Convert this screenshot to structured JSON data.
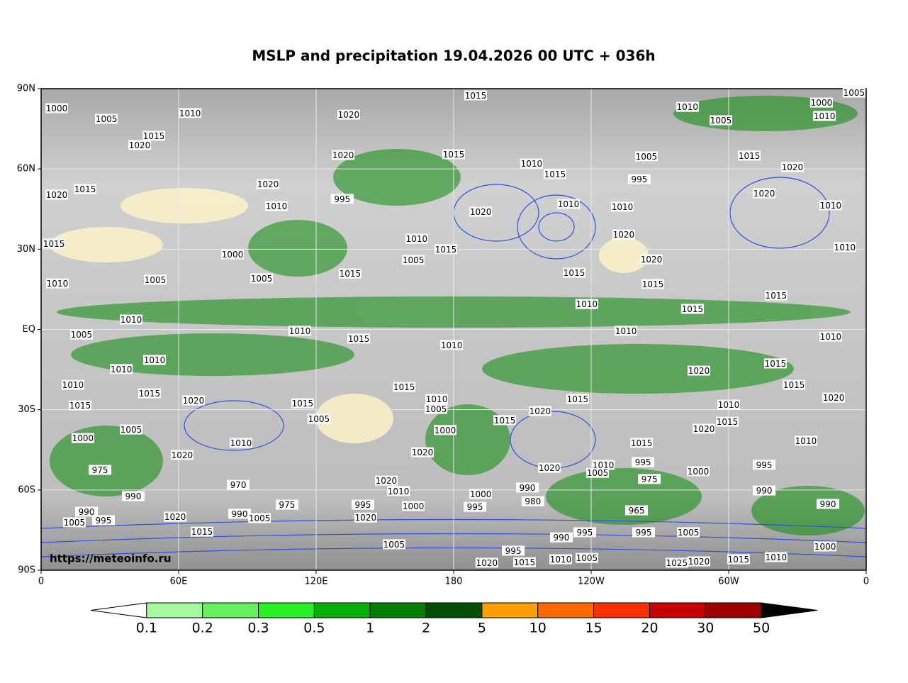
{
  "title": "MSLP and precipitation 19.04.2026 00 UTC + 036h",
  "watermark": "https://meteoinfo.ru",
  "map": {
    "xlim": [
      0,
      360
    ],
    "ylim": [
      -90,
      90
    ],
    "xticks": [
      0,
      {
        "value": 60,
        "label": "60E"
      },
      {
        "value": 120,
        "label": "120E"
      },
      180,
      {
        "value": 240,
        "label": "120W"
      },
      {
        "value": 300,
        "label": "60W"
      },
      {
        "value": 360,
        "label": "0"
      }
    ],
    "yticks": [
      {
        "value": 90,
        "label": "90N"
      },
      {
        "value": 60,
        "label": "60N"
      },
      {
        "value": 30,
        "label": "30N"
      },
      {
        "value": 0,
        "label": "EQ"
      },
      {
        "value": -30,
        "label": "30S"
      },
      {
        "value": -60,
        "label": "60S"
      },
      {
        "value": -90,
        "label": "90S"
      }
    ],
    "grid": true
  },
  "colorbar": {
    "levels": [
      0.1,
      0.2,
      0.3,
      0.5,
      1,
      2,
      5,
      10,
      15,
      20,
      30,
      50
    ],
    "colors": [
      "#ffffff",
      "#a5f8a0",
      "#66f060",
      "#27f027",
      "#07b007",
      "#058005",
      "#034f03",
      "#ff9e00",
      "#ff6a00",
      "#ff3000",
      "#c80000",
      "#a00000",
      "#000000"
    ]
  },
  "isobar_labels": [
    {
      "p": 1015,
      "lon": 189.6,
      "lat": 87.5
    },
    {
      "p": 1000,
      "lon": 6.8,
      "lat": 82.7
    },
    {
      "p": 1005,
      "lon": 28.5,
      "lat": 78.7
    },
    {
      "p": 1010,
      "lon": 65,
      "lat": 80.9
    },
    {
      "p": 1020,
      "lon": 134.2,
      "lat": 80.3
    },
    {
      "p": 1015,
      "lon": 49.2,
      "lat": 72.4
    },
    {
      "p": 1020,
      "lon": 43,
      "lat": 68.9
    },
    {
      "p": 1020,
      "lon": 131.8,
      "lat": 65.2
    },
    {
      "p": 1020,
      "lon": 6.8,
      "lat": 50.4
    },
    {
      "p": 1015,
      "lon": 19.2,
      "lat": 52.5
    },
    {
      "p": 1020,
      "lon": 99,
      "lat": 54.3
    },
    {
      "p": 1010,
      "lon": 102.7,
      "lat": 46.1
    },
    {
      "p": 995,
      "lon": 131.4,
      "lat": 48.8
    },
    {
      "p": 1015,
      "lon": 180,
      "lat": 65.5
    },
    {
      "p": 1010,
      "lon": 214,
      "lat": 62
    },
    {
      "p": 1015,
      "lon": 224.2,
      "lat": 58
    },
    {
      "p": 1020,
      "lon": 191.8,
      "lat": 44
    },
    {
      "p": 1010,
      "lon": 230.1,
      "lat": 46.9
    },
    {
      "p": 1010,
      "lon": 253.6,
      "lat": 45.9
    },
    {
      "p": 1020,
      "lon": 254.2,
      "lat": 35.5
    },
    {
      "p": 1005,
      "lon": 264.1,
      "lat": 64.7
    },
    {
      "p": 995,
      "lon": 261,
      "lat": 56.2
    },
    {
      "p": 1010,
      "lon": 282,
      "lat": 83.2
    },
    {
      "p": 1005,
      "lon": 296.6,
      "lat": 78.2
    },
    {
      "p": 1010,
      "lon": 341.8,
      "lat": 79.8
    },
    {
      "p": 1000,
      "lon": 340.5,
      "lat": 84.8
    },
    {
      "p": 1005,
      "lon": 354.7,
      "lat": 88.5
    },
    {
      "p": 1015,
      "lon": 309,
      "lat": 65
    },
    {
      "p": 1020,
      "lon": 327.8,
      "lat": 60.7
    },
    {
      "p": 1020,
      "lon": 315.5,
      "lat": 50.9
    },
    {
      "p": 1010,
      "lon": 344.5,
      "lat": 46.4
    },
    {
      "p": 1010,
      "lon": 350.7,
      "lat": 30.8
    },
    {
      "p": 1015,
      "lon": 5.6,
      "lat": 32.1
    },
    {
      "p": 1010,
      "lon": 7.1,
      "lat": 17.2
    },
    {
      "p": 1005,
      "lon": 49.8,
      "lat": 18.6
    },
    {
      "p": 1000,
      "lon": 83.5,
      "lat": 28.1
    },
    {
      "p": 1005,
      "lon": 96.2,
      "lat": 19.1
    },
    {
      "p": 1010,
      "lon": 163.9,
      "lat": 33.9
    },
    {
      "p": 1005,
      "lon": 162.4,
      "lat": 26
    },
    {
      "p": 1015,
      "lon": 176.6,
      "lat": 30
    },
    {
      "p": 1015,
      "lon": 134.8,
      "lat": 20.9
    },
    {
      "p": 1015,
      "lon": 232.6,
      "lat": 21.2
    },
    {
      "p": 1020,
      "lon": 266.3,
      "lat": 26.2
    },
    {
      "p": 1015,
      "lon": 266.9,
      "lat": 17
    },
    {
      "p": 1015,
      "lon": 284.2,
      "lat": 7.7
    },
    {
      "p": 1015,
      "lon": 320.7,
      "lat": 12.7
    },
    {
      "p": 1010,
      "lon": 238.1,
      "lat": 9.5
    },
    {
      "p": 1010,
      "lon": 255.2,
      "lat": -0.5
    },
    {
      "p": 1010,
      "lon": 179.1,
      "lat": -5.8
    },
    {
      "p": 1005,
      "lon": 17.6,
      "lat": -1.9
    },
    {
      "p": 1010,
      "lon": 39.3,
      "lat": 3.7
    },
    {
      "p": 1010,
      "lon": 112.9,
      "lat": -0.5
    },
    {
      "p": 1015,
      "lon": 138.6,
      "lat": -3.4
    },
    {
      "p": 1010,
      "lon": 344.5,
      "lat": -2.7
    },
    {
      "p": 1020,
      "lon": 287,
      "lat": -15.4
    },
    {
      "p": 1015,
      "lon": 320.4,
      "lat": -12.7
    },
    {
      "p": 1015,
      "lon": 328.5,
      "lat": -20.7
    },
    {
      "p": 1020,
      "lon": 345.8,
      "lat": -25.5
    },
    {
      "p": 1010,
      "lon": 300,
      "lat": -28.1
    },
    {
      "p": 1015,
      "lon": 299.4,
      "lat": -34.5
    },
    {
      "p": 1020,
      "lon": 289.2,
      "lat": -37.1
    },
    {
      "p": 1010,
      "lon": 13.9,
      "lat": -20.7
    },
    {
      "p": 1015,
      "lon": 17,
      "lat": -28.4
    },
    {
      "p": 1010,
      "lon": 49.5,
      "lat": -11.4
    },
    {
      "p": 1015,
      "lon": 47.3,
      "lat": -23.9
    },
    {
      "p": 1020,
      "lon": 66.5,
      "lat": -26.5
    },
    {
      "p": 1010,
      "lon": 35,
      "lat": -14.8
    },
    {
      "p": 1005,
      "lon": 39.3,
      "lat": -37.4
    },
    {
      "p": 1000,
      "lon": 18.2,
      "lat": -40.6
    },
    {
      "p": 975,
      "lon": 25.7,
      "lat": -52.5
    },
    {
      "p": 1020,
      "lon": 61.5,
      "lat": -46.9
    },
    {
      "p": 1010,
      "lon": 87.2,
      "lat": -42.4
    },
    {
      "p": 970,
      "lon": 86,
      "lat": -58.1
    },
    {
      "p": 1015,
      "lon": 114.1,
      "lat": -27.6
    },
    {
      "p": 1005,
      "lon": 121.2,
      "lat": -33.4
    },
    {
      "p": 1015,
      "lon": 158.4,
      "lat": -21.5
    },
    {
      "p": 1010,
      "lon": 172.6,
      "lat": -26
    },
    {
      "p": 1005,
      "lon": 172.3,
      "lat": -29.7
    },
    {
      "p": 1000,
      "lon": 176.3,
      "lat": -37.6
    },
    {
      "p": 1020,
      "lon": 166.4,
      "lat": -45.9
    },
    {
      "p": 1020,
      "lon": 150.6,
      "lat": -56.5
    },
    {
      "p": 1010,
      "lon": 155.9,
      "lat": -60.4
    },
    {
      "p": 1015,
      "lon": 202.3,
      "lat": -33.9
    },
    {
      "p": 1020,
      "lon": 217.7,
      "lat": -30.5
    },
    {
      "p": 1015,
      "lon": 234.1,
      "lat": -26
    },
    {
      "p": 1020,
      "lon": 221.8,
      "lat": -51.7
    },
    {
      "p": 1010,
      "lon": 245.3,
      "lat": -50.6
    },
    {
      "p": 1005,
      "lon": 242.8,
      "lat": -53.6
    },
    {
      "p": 1015,
      "lon": 262,
      "lat": -42.4
    },
    {
      "p": 995,
      "lon": 262.6,
      "lat": -49.6
    },
    {
      "p": 975,
      "lon": 265.4,
      "lat": -55.9
    },
    {
      "p": 965,
      "lon": 259.8,
      "lat": -67.6
    },
    {
      "p": 1000,
      "lon": 191.8,
      "lat": -61.5
    },
    {
      "p": 995,
      "lon": 189.3,
      "lat": -66.3
    },
    {
      "p": 990,
      "lon": 212.2,
      "lat": -59.1
    },
    {
      "p": 980,
      "lon": 214.6,
      "lat": -64.2
    },
    {
      "p": 1000,
      "lon": 286.7,
      "lat": -53
    },
    {
      "p": 995,
      "lon": 315.5,
      "lat": -50.6
    },
    {
      "p": 990,
      "lon": 315.5,
      "lat": -60.2
    },
    {
      "p": 1010,
      "lon": 333.7,
      "lat": -41.6
    },
    {
      "p": 990,
      "lon": 343.3,
      "lat": -65.2
    },
    {
      "p": 990,
      "lon": 40.2,
      "lat": -62.3
    },
    {
      "p": 990,
      "lon": 19.8,
      "lat": -68.1
    },
    {
      "p": 1005,
      "lon": 14.5,
      "lat": -72.1
    },
    {
      "p": 995,
      "lon": 27.2,
      "lat": -71.3
    },
    {
      "p": 1020,
      "lon": 58.5,
      "lat": -70
    },
    {
      "p": 1015,
      "lon": 70.2,
      "lat": -75.6
    },
    {
      "p": 990,
      "lon": 86.6,
      "lat": -68.9
    },
    {
      "p": 1005,
      "lon": 95.3,
      "lat": -70.5
    },
    {
      "p": 975,
      "lon": 107.3,
      "lat": -65.5
    },
    {
      "p": 995,
      "lon": 140.4,
      "lat": -65.5
    },
    {
      "p": 1020,
      "lon": 141.6,
      "lat": -70.3
    },
    {
      "p": 1000,
      "lon": 162.4,
      "lat": -66
    },
    {
      "p": 1005,
      "lon": 154,
      "lat": -80.3
    },
    {
      "p": 990,
      "lon": 227,
      "lat": -77.7
    },
    {
      "p": 995,
      "lon": 237.2,
      "lat": -75.8
    },
    {
      "p": 995,
      "lon": 262.9,
      "lat": -75.8
    },
    {
      "p": 1005,
      "lon": 282.4,
      "lat": -75.8
    },
    {
      "p": 995,
      "lon": 206,
      "lat": -82.7
    },
    {
      "p": 1020,
      "lon": 194.5,
      "lat": -87.2
    },
    {
      "p": 1015,
      "lon": 210.9,
      "lat": -87
    },
    {
      "p": 1010,
      "lon": 226.7,
      "lat": -85.9
    },
    {
      "p": 1005,
      "lon": 238.1,
      "lat": -85.4
    },
    {
      "p": 1025,
      "lon": 277.4,
      "lat": -87.2
    },
    {
      "p": 1020,
      "lon": 287,
      "lat": -86.7
    },
    {
      "p": 1015,
      "lon": 304.3,
      "lat": -85.9
    },
    {
      "p": 1010,
      "lon": 320.7,
      "lat": -85.1
    },
    {
      "p": 1000,
      "lon": 342.1,
      "lat": -81.1
    }
  ]
}
